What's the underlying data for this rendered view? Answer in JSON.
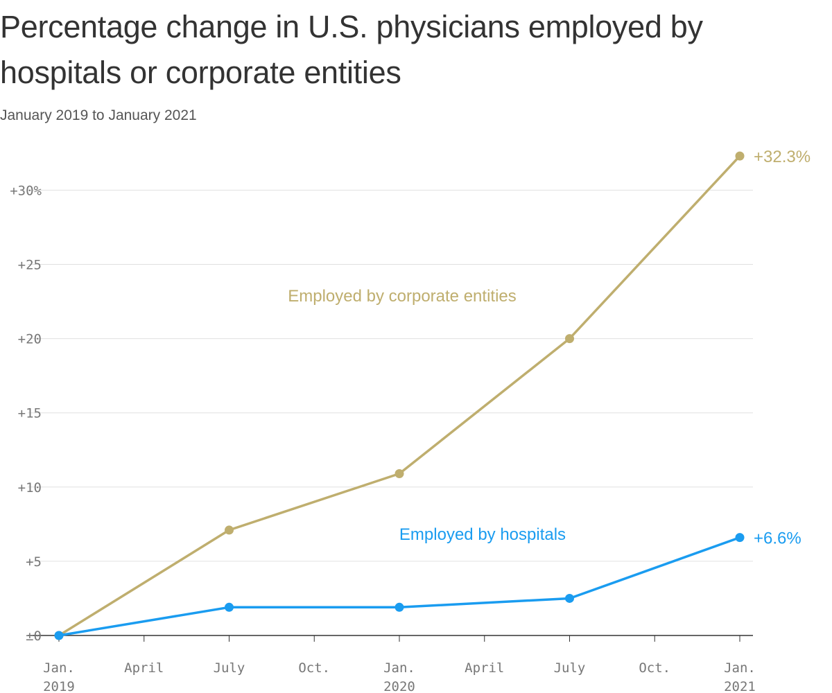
{
  "title": "Percentage change in U.S. physicians employed by hospitals or corporate entities",
  "subtitle": "January 2019 to January 2021",
  "colors": {
    "corporate": "#bfae6e",
    "hospitals": "#1a9cf0",
    "grid": "#e0e0e0",
    "axis": "#333333",
    "tick_text": "#777777"
  },
  "chart_data": {
    "type": "line",
    "title": "Percentage change in U.S. physicians employed by hospitals or corporate entities",
    "subtitle": "January 2019 to January 2021",
    "x": [
      "2019-01",
      "2019-07",
      "2020-01",
      "2020-07",
      "2021-01"
    ],
    "x_ticks": [
      {
        "date": "2019-01",
        "line1": "Jan.",
        "line2": "2019"
      },
      {
        "date": "2019-04",
        "line1": "April",
        "line2": ""
      },
      {
        "date": "2019-07",
        "line1": "July",
        "line2": ""
      },
      {
        "date": "2019-10",
        "line1": "Oct.",
        "line2": ""
      },
      {
        "date": "2020-01",
        "line1": "Jan.",
        "line2": "2020"
      },
      {
        "date": "2020-04",
        "line1": "April",
        "line2": ""
      },
      {
        "date": "2020-07",
        "line1": "July",
        "line2": ""
      },
      {
        "date": "2020-10",
        "line1": "Oct.",
        "line2": ""
      },
      {
        "date": "2021-01",
        "line1": "Jan.",
        "line2": "2021"
      }
    ],
    "y_ticks": [
      {
        "value": 0,
        "label": "±0"
      },
      {
        "value": 5,
        "label": "+5"
      },
      {
        "value": 10,
        "label": "+10"
      },
      {
        "value": 15,
        "label": "+15"
      },
      {
        "value": 20,
        "label": "+20"
      },
      {
        "value": 25,
        "label": "+25"
      },
      {
        "value": 30,
        "label": "+30%"
      }
    ],
    "xlim": [
      "2019-01",
      "2021-01"
    ],
    "ylim": [
      0,
      32.3
    ],
    "grid": true,
    "series": [
      {
        "name": "Employed by corporate entities",
        "key": "corporate",
        "values": [
          0,
          7.1,
          10.9,
          20.0,
          32.3
        ],
        "end_label": "+32.3%"
      },
      {
        "name": "Employed by hospitals",
        "key": "hospitals",
        "values": [
          0,
          1.9,
          1.9,
          2.5,
          6.6
        ],
        "end_label": "+6.6%"
      }
    ]
  }
}
